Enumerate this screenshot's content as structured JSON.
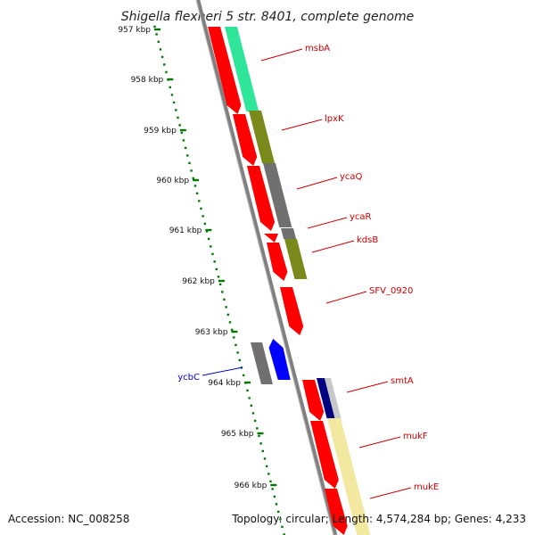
{
  "title": "Shigella flexneri 5 str. 8401, complete genome",
  "footer": {
    "accession": "Accession: NC_008258",
    "topology": "Topology: circular; Length: 4,574,284 bp; Genes: 4,233"
  },
  "ruler": {
    "unit": "kbp",
    "ticks": [
      "957 kbp",
      "958 kbp",
      "959 kbp",
      "960 kbp",
      "961 kbp",
      "962 kbp",
      "963 kbp",
      "964 kbp",
      "965 kbp",
      "966 kbp"
    ]
  },
  "colors": {
    "forward_cds": "#ff0000",
    "reverse_cds": "#0000ff",
    "backbone": "#808080",
    "ruler": "#007700",
    "label_forward": "#cc0000",
    "label_reverse": "#0000cc",
    "cog_green": "#2ee59a",
    "cog_olive": "#7a8a1a",
    "cog_gray": "#707070",
    "cog_yellow": "#f2e8a0",
    "cog_navy": "#000080"
  },
  "genes": [
    {
      "name": "msbA",
      "strand": "forward"
    },
    {
      "name": "lpxK",
      "strand": "forward"
    },
    {
      "name": "ycaQ",
      "strand": "forward"
    },
    {
      "name": "ycaR",
      "strand": "forward"
    },
    {
      "name": "kdsB",
      "strand": "forward"
    },
    {
      "name": "SFV_0920",
      "strand": "forward"
    },
    {
      "name": "ycbC",
      "strand": "reverse"
    },
    {
      "name": "smtA",
      "strand": "forward"
    },
    {
      "name": "mukF",
      "strand": "forward"
    },
    {
      "name": "mukE",
      "strand": "forward"
    }
  ]
}
